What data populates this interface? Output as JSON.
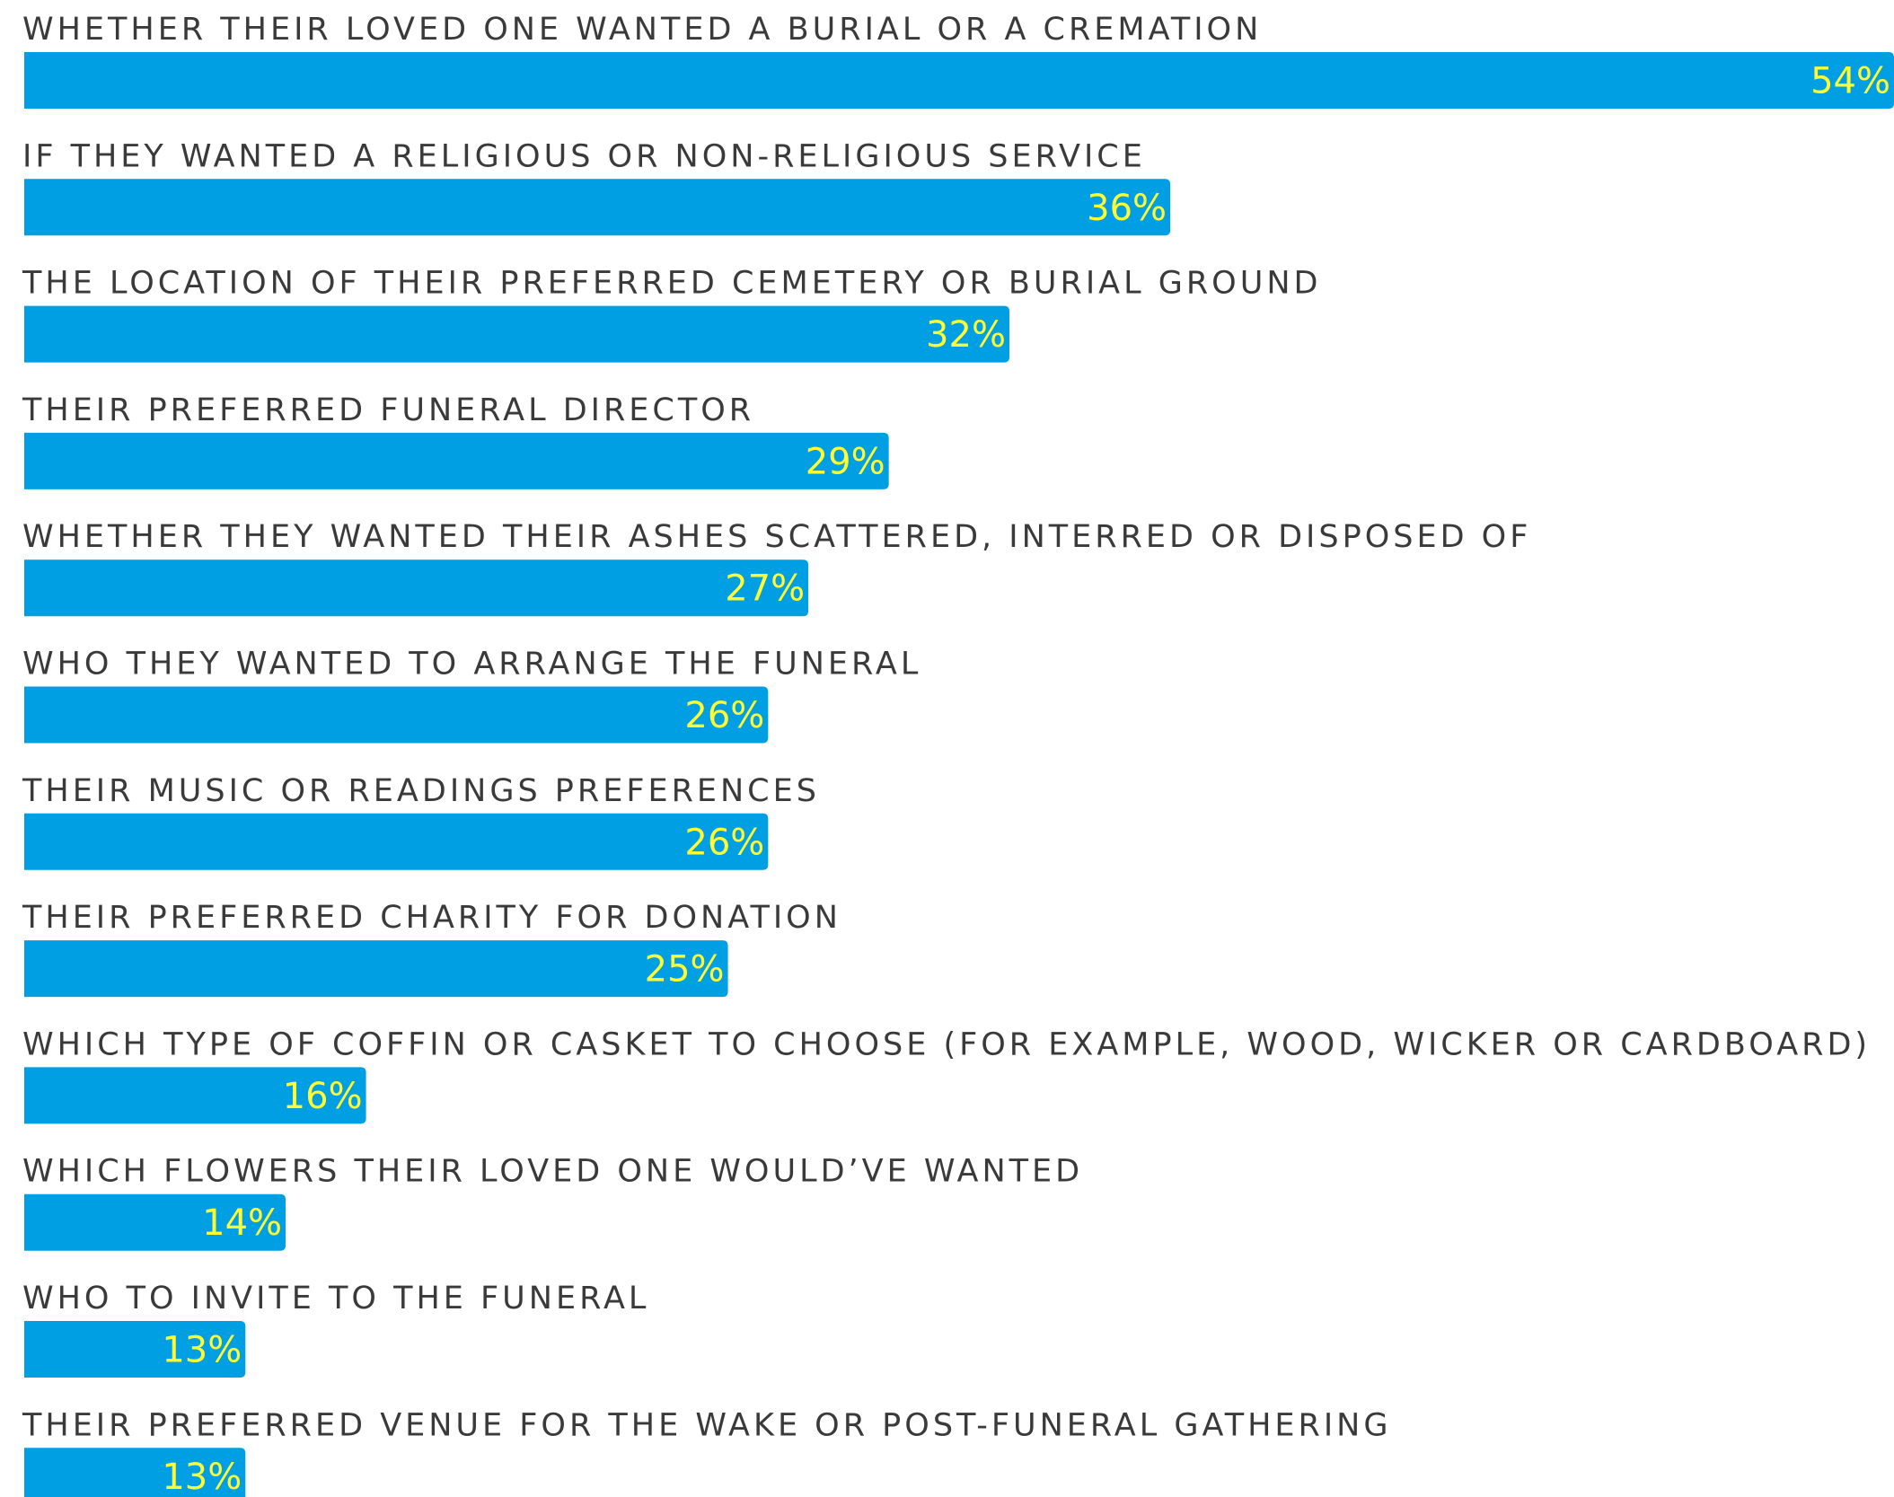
{
  "chart_data": {
    "type": "bar",
    "orientation": "horizontal",
    "categories": [
      "WHETHER THEIR LOVED ONE WANTED A BURIAL OR A CREMATION",
      "IF THEY WANTED A RELIGIOUS OR NON-RELIGIOUS SERVICE",
      "THE LOCATION OF THEIR PREFERRED CEMETERY OR BURIAL GROUND",
      "THEIR PREFERRED FUNERAL DIRECTOR",
      "WHETHER THEY WANTED THEIR ASHES SCATTERED, INTERRED OR DISPOSED OF",
      "WHO THEY WANTED TO ARRANGE THE FUNERAL",
      "THEIR MUSIC OR READINGS PREFERENCES",
      "THEIR PREFERRED CHARITY FOR DONATION",
      "WHICH TYPE OF COFFIN OR CASKET TO CHOOSE (FOR EXAMPLE, WOOD, WICKER OR CARDBOARD)",
      "WHICH FLOWERS THEIR LOVED ONE WOULD’VE WANTED",
      "WHO TO INVITE TO THE FUNERAL",
      "THEIR PREFERRED VENUE FOR THE WAKE OR POST-FUNERAL GATHERING"
    ],
    "values": [
      54,
      36,
      32,
      29,
      27,
      26,
      26,
      25,
      16,
      14,
      13,
      13
    ],
    "value_labels": [
      "54%",
      "36%",
      "32%",
      "29%",
      "27%",
      "26%",
      "26%",
      "25%",
      "16%",
      "14%",
      "13%",
      "13%"
    ],
    "color": "#009fe3",
    "label_color": "#ffff33",
    "xlim": [
      7.5,
      54
    ]
  }
}
